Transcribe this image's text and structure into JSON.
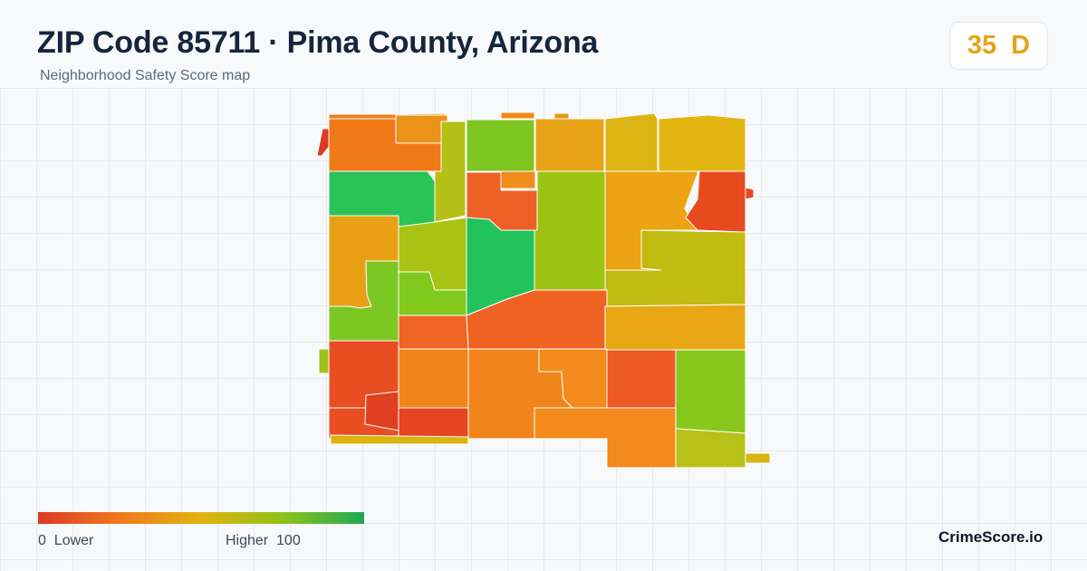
{
  "header": {
    "title": "ZIP Code 85711 · Pima County, Arizona",
    "subtitle": "Neighborhood Safety Score map"
  },
  "score_badge": {
    "score": "35",
    "grade": "D",
    "color": "#e5a31b"
  },
  "legend": {
    "min_value": "0",
    "min_label": "Lower",
    "max_label": "Higher",
    "max_value": "100",
    "color_scale": [
      "#dc3a25",
      "#ef7a1f",
      "#e3b310",
      "#8fc21a",
      "#1faa55"
    ]
  },
  "brand": "CrimeScore.io"
}
